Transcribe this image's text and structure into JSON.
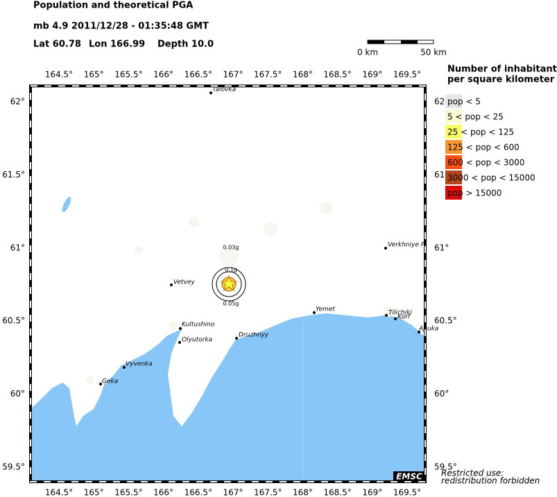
{
  "header": {
    "title": "Population and theoretical PGA",
    "event": "mb 4.9  2011/12/28 - 01:35:48 GMT",
    "lat": "Lat 60.78",
    "lon": "Lon 166.99",
    "depth": "Depth 10.0"
  },
  "scale_bar": {
    "start": "0 km",
    "end": "50 km"
  },
  "map": {
    "lon_labels": [
      "164.5°",
      "165°",
      "165.5°",
      "166°",
      "166.5°",
      "167°",
      "167.5°",
      "168°",
      "168.5°",
      "169°",
      "169.5°"
    ],
    "lat_labels": [
      "62°",
      "61.5°",
      "61°",
      "60.5°",
      "60°",
      "59.5°"
    ],
    "cities": [
      "Talovka",
      "Vetvey",
      "Kultushino",
      "Olyutorka",
      "Druzhnyy",
      "Vyvenka",
      "Geka",
      "Yemet",
      "Verkhniye P",
      "Tilichiki",
      "Korf",
      "Apuka"
    ],
    "pga_labels": [
      "0.03g",
      "0.1g",
      "0.05g"
    ]
  },
  "legend": {
    "title": [
      "Number of inhabitants",
      "per square kilometer"
    ],
    "items": [
      {
        "label": "pop < 5",
        "color": "#e6e6e6"
      },
      {
        "label": "5 < pop < 25",
        "color": "#fafad2"
      },
      {
        "label": "25 < pop < 125",
        "color": "#fafa64"
      },
      {
        "label": "125 < pop < 600",
        "color": "#fa9632"
      },
      {
        "label": "600 < pop < 3000",
        "color": "#fa5014"
      },
      {
        "label": "3000 < pop < 15000",
        "color": "#b4461e"
      },
      {
        "label": "pop > 15000",
        "color": "#dc0a0a"
      }
    ]
  },
  "footer": {
    "logo": "EMSC",
    "notice": [
      "Restricted use:",
      "redistribution forbidden"
    ]
  }
}
